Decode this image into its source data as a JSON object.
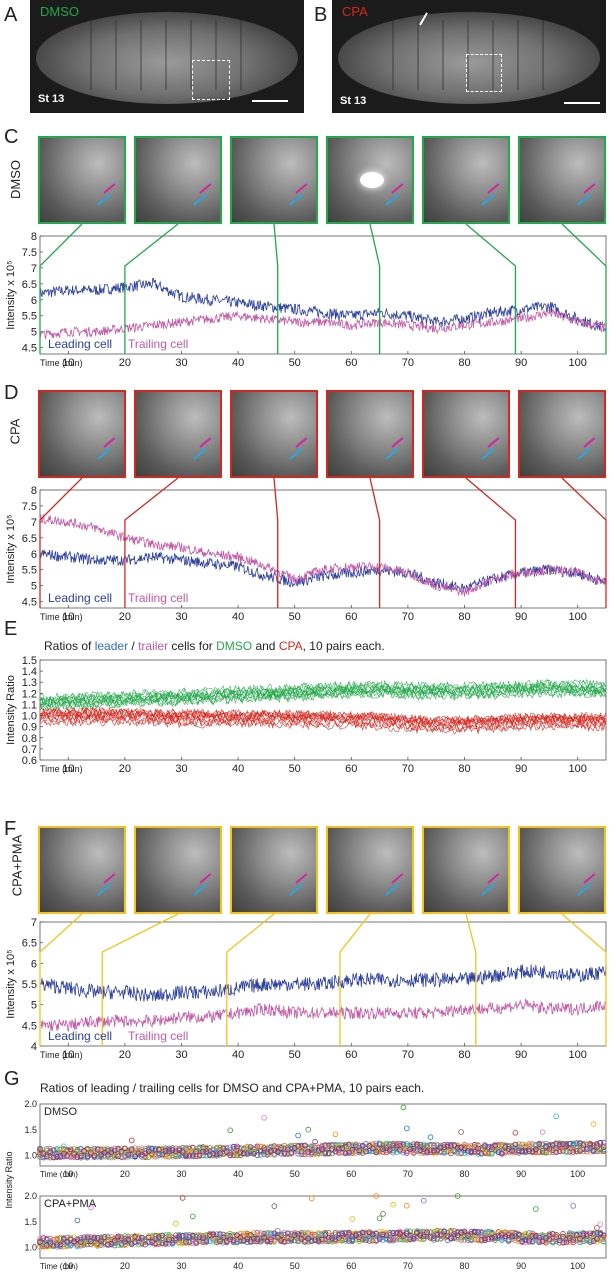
{
  "panel_labels": [
    "A",
    "B",
    "C",
    "D",
    "E",
    "F",
    "G"
  ],
  "micro": {
    "a_label": "DMSO",
    "b_label": "CPA",
    "stage_a": "St 13",
    "stage_b": "St 13"
  },
  "row_labels": {
    "c": "DMSO",
    "d": "CPA",
    "f": "CPA+PMA"
  },
  "colors": {
    "dmso": "#22a84a",
    "cpa": "#d7261e",
    "cpa_pma": "#f6c21a",
    "leading": "#2b3f9e",
    "trailing": "#c25aa7",
    "arrow_blue": "#26a7e1",
    "arrow_magenta": "#cc2a9b"
  },
  "chart_data": [
    {
      "id": "C",
      "type": "line",
      "ylabel": "Intensity  x 10⁵",
      "xlabel": "Time (min)",
      "ylim": [
        4.3,
        8
      ],
      "xlim": [
        5,
        105
      ],
      "yticks": [
        "4.5",
        "5",
        "5.5",
        "6",
        "6.5",
        "7",
        "7.5",
        "8"
      ],
      "xticks": [
        "10",
        "20",
        "30",
        "40",
        "50",
        "60",
        "70",
        "80",
        "90",
        "100"
      ],
      "legend": [
        "Leading cell",
        "Trailing cell"
      ],
      "frame_times": [
        5,
        20,
        47,
        65,
        89,
        105
      ],
      "series": [
        {
          "name": "Leading cell",
          "x": [
            5,
            10,
            15,
            20,
            25,
            30,
            35,
            40,
            45,
            50,
            55,
            60,
            65,
            70,
            75,
            80,
            85,
            90,
            95,
            100,
            105
          ],
          "values": [
            6.2,
            6.3,
            6.3,
            6.4,
            6.5,
            6.1,
            6.0,
            5.9,
            5.8,
            5.7,
            5.6,
            5.5,
            5.6,
            5.5,
            5.3,
            5.4,
            5.6,
            5.7,
            5.8,
            5.4,
            5.1
          ]
        },
        {
          "name": "Trailing cell",
          "x": [
            5,
            10,
            15,
            20,
            25,
            30,
            35,
            40,
            45,
            50,
            55,
            60,
            65,
            70,
            75,
            80,
            85,
            90,
            95,
            100,
            105
          ],
          "values": [
            4.9,
            5.0,
            5.0,
            5.1,
            5.2,
            5.3,
            5.4,
            5.5,
            5.4,
            5.3,
            5.3,
            5.2,
            5.3,
            5.2,
            5.1,
            5.2,
            5.3,
            5.4,
            5.6,
            5.3,
            5.1
          ]
        }
      ]
    },
    {
      "id": "D",
      "type": "line",
      "ylabel": "Intensity  x 10⁵",
      "xlabel": "Time (min)",
      "ylim": [
        4.3,
        8
      ],
      "xlim": [
        5,
        105
      ],
      "yticks": [
        "4.5",
        "5",
        "5.5",
        "6",
        "6.5",
        "7",
        "7.5",
        "8"
      ],
      "xticks": [
        "10",
        "20",
        "30",
        "40",
        "50",
        "60",
        "70",
        "80",
        "90",
        "100"
      ],
      "legend": [
        "Leading cell",
        "Trailing cell"
      ],
      "frame_times": [
        5,
        20,
        47,
        65,
        89,
        105
      ],
      "series": [
        {
          "name": "Leading cell",
          "x": [
            5,
            10,
            15,
            20,
            25,
            30,
            35,
            40,
            45,
            50,
            55,
            60,
            65,
            70,
            75,
            80,
            85,
            90,
            95,
            100,
            105
          ],
          "values": [
            6.0,
            5.9,
            5.8,
            5.8,
            5.9,
            5.8,
            5.7,
            5.6,
            5.3,
            5.1,
            5.3,
            5.4,
            5.5,
            5.4,
            5.1,
            4.9,
            5.2,
            5.4,
            5.5,
            5.4,
            5.1
          ]
        },
        {
          "name": "Trailing cell",
          "x": [
            5,
            10,
            15,
            20,
            25,
            30,
            35,
            40,
            45,
            50,
            55,
            60,
            65,
            70,
            75,
            80,
            85,
            90,
            95,
            100,
            105
          ],
          "values": [
            7.1,
            7.0,
            6.8,
            6.5,
            6.3,
            6.2,
            6.0,
            5.9,
            5.6,
            5.2,
            5.5,
            5.6,
            5.6,
            5.4,
            5.0,
            4.8,
            5.2,
            5.4,
            5.5,
            5.4,
            5.1
          ]
        }
      ]
    },
    {
      "id": "E",
      "type": "line",
      "title_parts": [
        "Ratios of ",
        "leader",
        " / ",
        "trailer",
        " cells for ",
        "DMSO",
        " and ",
        "CPA",
        ", 10 pairs each."
      ],
      "ylabel": "Intensity Ratio",
      "xlabel": "Time (min)",
      "ylim": [
        0.6,
        1.5
      ],
      "xlim": [
        5,
        105
      ],
      "yticks": [
        "0.6",
        "0.7",
        "0.8",
        "0.9",
        "1.0",
        "1.1",
        "1.2",
        "1.3",
        "1.4",
        "1.5"
      ],
      "xticks": [
        "10",
        "20",
        "30",
        "40",
        "50",
        "60",
        "70",
        "80",
        "90",
        "100"
      ],
      "x": [
        5,
        15,
        25,
        35,
        45,
        55,
        65,
        75,
        85,
        95,
        105
      ],
      "series": [
        {
          "name": "DMSO",
          "values": [
            1.12,
            1.14,
            1.16,
            1.18,
            1.2,
            1.22,
            1.24,
            1.22,
            1.23,
            1.25,
            1.24
          ],
          "spread": 0.1
        },
        {
          "name": "CPA",
          "values": [
            1.0,
            1.0,
            0.99,
            0.98,
            0.98,
            0.97,
            0.96,
            0.92,
            0.94,
            0.96,
            0.95
          ],
          "spread": 0.12
        }
      ]
    },
    {
      "id": "F",
      "type": "line",
      "ylabel": "Intensity  x 10⁵",
      "xlabel": "Time (min)",
      "ylim": [
        4,
        7
      ],
      "xlim": [
        5,
        105
      ],
      "yticks": [
        "4",
        "4.5",
        "5",
        "5.5",
        "6",
        "6.5",
        "7"
      ],
      "xticks": [
        "10",
        "20",
        "30",
        "40",
        "50",
        "60",
        "70",
        "80",
        "90",
        "100"
      ],
      "legend": [
        "Leading cell",
        "Trailing cell"
      ],
      "frame_times": [
        5,
        16,
        38,
        58,
        82,
        105
      ],
      "series": [
        {
          "name": "Leading cell",
          "x": [
            5,
            10,
            15,
            20,
            25,
            30,
            35,
            40,
            45,
            50,
            55,
            60,
            65,
            70,
            75,
            80,
            85,
            90,
            95,
            100,
            105
          ],
          "values": [
            5.5,
            5.4,
            5.3,
            5.3,
            5.2,
            5.3,
            5.3,
            5.4,
            5.5,
            5.5,
            5.5,
            5.6,
            5.6,
            5.6,
            5.6,
            5.6,
            5.7,
            5.8,
            5.8,
            5.7,
            5.8
          ]
        },
        {
          "name": "Trailing cell",
          "x": [
            5,
            10,
            15,
            20,
            25,
            30,
            35,
            40,
            45,
            50,
            55,
            60,
            65,
            70,
            75,
            80,
            85,
            90,
            95,
            100,
            105
          ],
          "values": [
            4.5,
            4.5,
            4.6,
            4.6,
            4.6,
            4.7,
            4.7,
            4.8,
            4.9,
            4.8,
            4.8,
            4.8,
            4.8,
            4.8,
            4.8,
            4.9,
            4.9,
            5.0,
            4.9,
            4.9,
            5.0
          ]
        }
      ]
    },
    {
      "id": "G",
      "type": "scatter",
      "title": "Ratios of leading / trailing cells for DMSO and CPA+PMA, 10 pairs each.",
      "ylabel": "Intensity Ratio",
      "xlabel": "Time (min)",
      "xlim": [
        5,
        105
      ],
      "ylim": [
        0.8,
        2.0
      ],
      "yticks": [
        "1.0",
        "1.5",
        "2.0"
      ],
      "xticks": [
        "10",
        "20",
        "30",
        "40",
        "50",
        "60",
        "70",
        "80",
        "90",
        "100"
      ],
      "subplots": [
        {
          "name": "DMSO",
          "mean": [
            1.05,
            1.05,
            1.06,
            1.08,
            1.1,
            1.12,
            1.15,
            1.13,
            1.12,
            1.15,
            1.17
          ]
        },
        {
          "name": "CPA+PMA",
          "mean": [
            1.1,
            1.12,
            1.15,
            1.18,
            1.2,
            1.2,
            1.22,
            1.24,
            1.22,
            1.18,
            1.2
          ]
        }
      ],
      "point_colors": [
        "#1f77b4",
        "#ff7f0e",
        "#2ca02c",
        "#d62728",
        "#9467bd",
        "#8c564b",
        "#e377c2",
        "#17becf",
        "#f0b400",
        "#7b2f9d"
      ]
    }
  ]
}
